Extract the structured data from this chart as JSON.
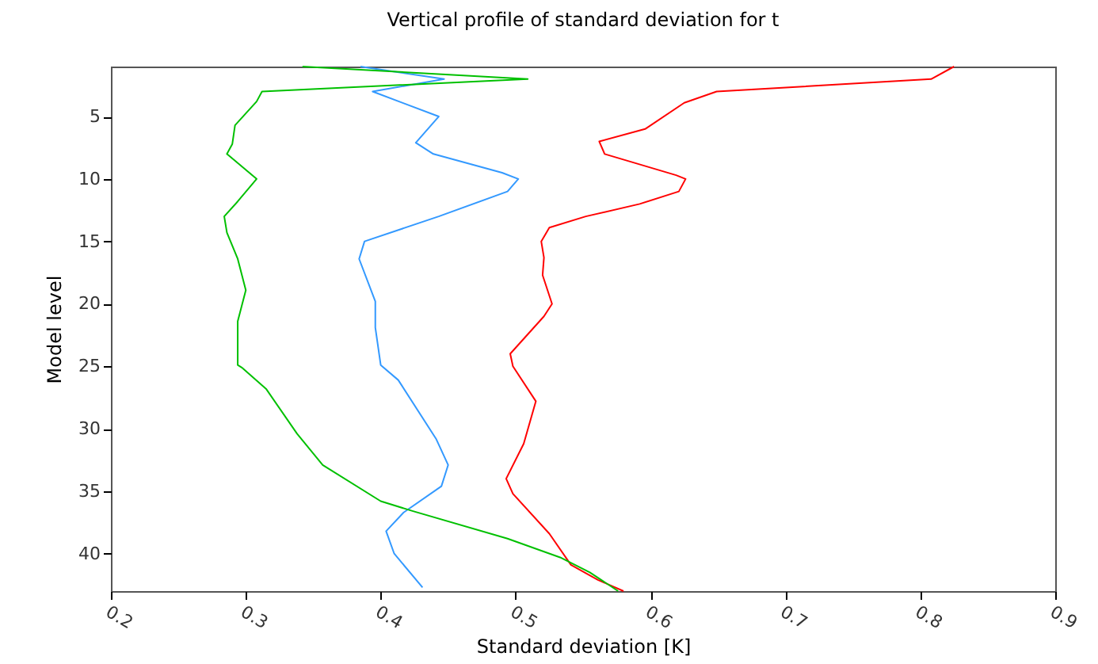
{
  "chart_data": {
    "type": "line",
    "title": "Vertical profile of standard deviation for t",
    "xlabel": "Standard deviation [K]",
    "ylabel": "Model level",
    "xlim": [
      0.2,
      0.9
    ],
    "xticks": [
      0.2,
      0.3,
      0.4,
      0.5,
      0.6,
      0.7,
      0.8,
      0.9
    ],
    "ylim": [
      43,
      1
    ],
    "yticks": [
      5,
      10,
      15,
      20,
      25,
      30,
      35,
      40
    ],
    "grid": false,
    "line_style": "solid",
    "marker": "none",
    "series": [
      {
        "color": "#ff0000",
        "x": [
          0.825,
          0.808,
          0.649,
          0.625,
          0.596,
          0.562,
          0.566,
          0.619,
          0.626,
          0.621,
          0.592,
          0.552,
          0.525,
          0.519,
          0.521,
          0.52,
          0.527,
          0.521,
          0.496,
          0.498,
          0.515,
          0.506,
          0.493,
          0.498,
          0.525,
          0.541,
          0.561,
          0.58
        ],
        "values": [
          1,
          2,
          3,
          3.9,
          6,
          7,
          8,
          9.7,
          10,
          11,
          12,
          13,
          13.9,
          15,
          16.3,
          17.7,
          20,
          21,
          24,
          25,
          27.8,
          31.2,
          34,
          35.2,
          38.4,
          40.9,
          42.1,
          43
        ]
      },
      {
        "color": "#3399ff",
        "x": [
          0.385,
          0.447,
          0.394,
          0.443,
          0.426,
          0.439,
          0.49,
          0.502,
          0.494,
          0.443,
          0.388,
          0.384,
          0.396,
          0.396,
          0.4,
          0.413,
          0.441,
          0.45,
          0.445,
          0.417,
          0.404,
          0.41,
          0.431
        ],
        "values": [
          1,
          2,
          3,
          5,
          7.1,
          8,
          9.5,
          10,
          11,
          13,
          15,
          16.4,
          19.8,
          21.9,
          24.9,
          26.1,
          30.8,
          32.9,
          34.6,
          36.7,
          38.2,
          40,
          42.7
        ]
      },
      {
        "color": "#00c000",
        "x": [
          0.342,
          0.509,
          0.312,
          0.308,
          0.292,
          0.29,
          0.286,
          0.308,
          0.294,
          0.284,
          0.286,
          0.294,
          0.3,
          0.294,
          0.294,
          0.297,
          0.315,
          0.338,
          0.357,
          0.4,
          0.424,
          0.494,
          0.533,
          0.555,
          0.576
        ],
        "values": [
          1,
          2,
          3,
          3.8,
          5.7,
          7.2,
          8,
          10,
          11.8,
          13,
          14.3,
          16.4,
          18.9,
          21.4,
          24.9,
          25.1,
          26.8,
          30.4,
          32.9,
          35.8,
          36.6,
          38.8,
          40.3,
          41.5,
          43
        ]
      }
    ]
  }
}
